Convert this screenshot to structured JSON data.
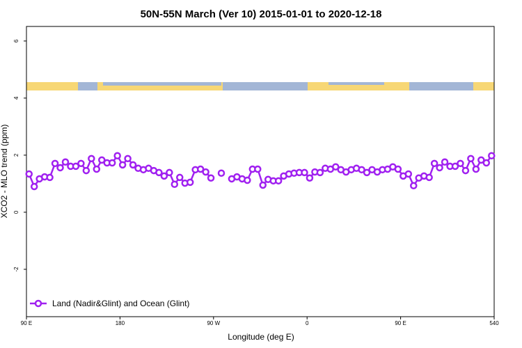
{
  "chart_data": {
    "type": "line",
    "title": "50N-55N March (Ver 10)   2015-01-01 to 2020-12-18",
    "x_label": "Longitude (deg E)",
    "y_label": "XCO2 - MLO trend (ppm)",
    "xlim": [
      90,
      540
    ],
    "ylim": [
      -3.66,
      6.51
    ],
    "xticks": [
      {
        "value": 90,
        "label": "90 E"
      },
      180,
      {
        "value": 270,
        "label": "90 W"
      },
      {
        "value": 360,
        "label": "0"
      },
      {
        "value": 450,
        "label": "90 E"
      },
      540
    ],
    "yticks": [
      -2,
      0,
      2,
      4,
      6
    ],
    "legend": "bottom-left",
    "x": [
      92.5,
      97.5,
      102.5,
      107.5,
      112.5,
      117.5,
      122.5,
      127.5,
      132.5,
      137.5,
      142.5,
      147.5,
      152.5,
      157.5,
      162.5,
      167.5,
      172.5,
      177.5,
      182.5,
      187.5,
      192.5,
      197.5,
      202.5,
      207.5,
      212.5,
      217.5,
      222.5,
      227.5,
      232.5,
      237.5,
      242.5,
      247.5,
      252.5,
      257.5,
      262.5,
      267.5,
      272.5,
      277.5,
      282.5,
      287.5,
      292.5,
      297.5,
      302.5,
      307.5,
      312.5,
      317.5,
      322.5,
      327.5,
      332.5,
      337.5,
      342.5,
      347.5,
      352.5,
      357.5,
      362.5,
      367.5,
      372.5,
      377.5,
      382.5,
      387.5,
      392.5,
      397.5,
      402.5,
      407.5,
      412.5,
      417.5,
      422.5,
      427.5,
      432.5,
      437.5,
      442.5,
      447.5,
      452.5,
      457.5,
      462.5,
      467.5,
      472.5,
      477.5,
      482.5,
      487.5,
      492.5,
      497.5,
      502.5,
      507.5,
      512.5,
      517.5,
      522.5,
      527.5,
      532.5,
      537.5
    ],
    "series": [
      {
        "name": "Land (Nadir&Glint) and Ocean (Glint)",
        "color": "#a020f0",
        "values": [
          1.34,
          0.9,
          1.17,
          1.24,
          1.22,
          1.71,
          1.56,
          1.76,
          1.61,
          1.61,
          1.71,
          1.46,
          1.88,
          1.51,
          1.83,
          1.73,
          1.73,
          1.98,
          1.66,
          1.88,
          1.66,
          1.54,
          1.49,
          1.54,
          1.46,
          1.39,
          1.27,
          1.39,
          0.98,
          1.22,
          1.02,
          1.05,
          1.49,
          1.51,
          1.41,
          1.2,
          null,
          1.37,
          null,
          1.17,
          1.24,
          1.17,
          1.12,
          1.51,
          1.51,
          0.95,
          1.15,
          1.1,
          1.1,
          1.27,
          1.34,
          1.37,
          1.39,
          1.39,
          1.2,
          1.41,
          1.39,
          1.54,
          1.51,
          1.59,
          1.49,
          1.41,
          1.49,
          1.54,
          1.49,
          1.39,
          1.49,
          1.41,
          1.49,
          1.51,
          1.59,
          1.51,
          1.27,
          1.34,
          0.93,
          1.2,
          1.27,
          1.22,
          1.71,
          1.56,
          1.76,
          1.61,
          1.61,
          1.71,
          1.46,
          1.88,
          1.51,
          1.83,
          1.73,
          1.98
        ]
      }
    ]
  }
}
